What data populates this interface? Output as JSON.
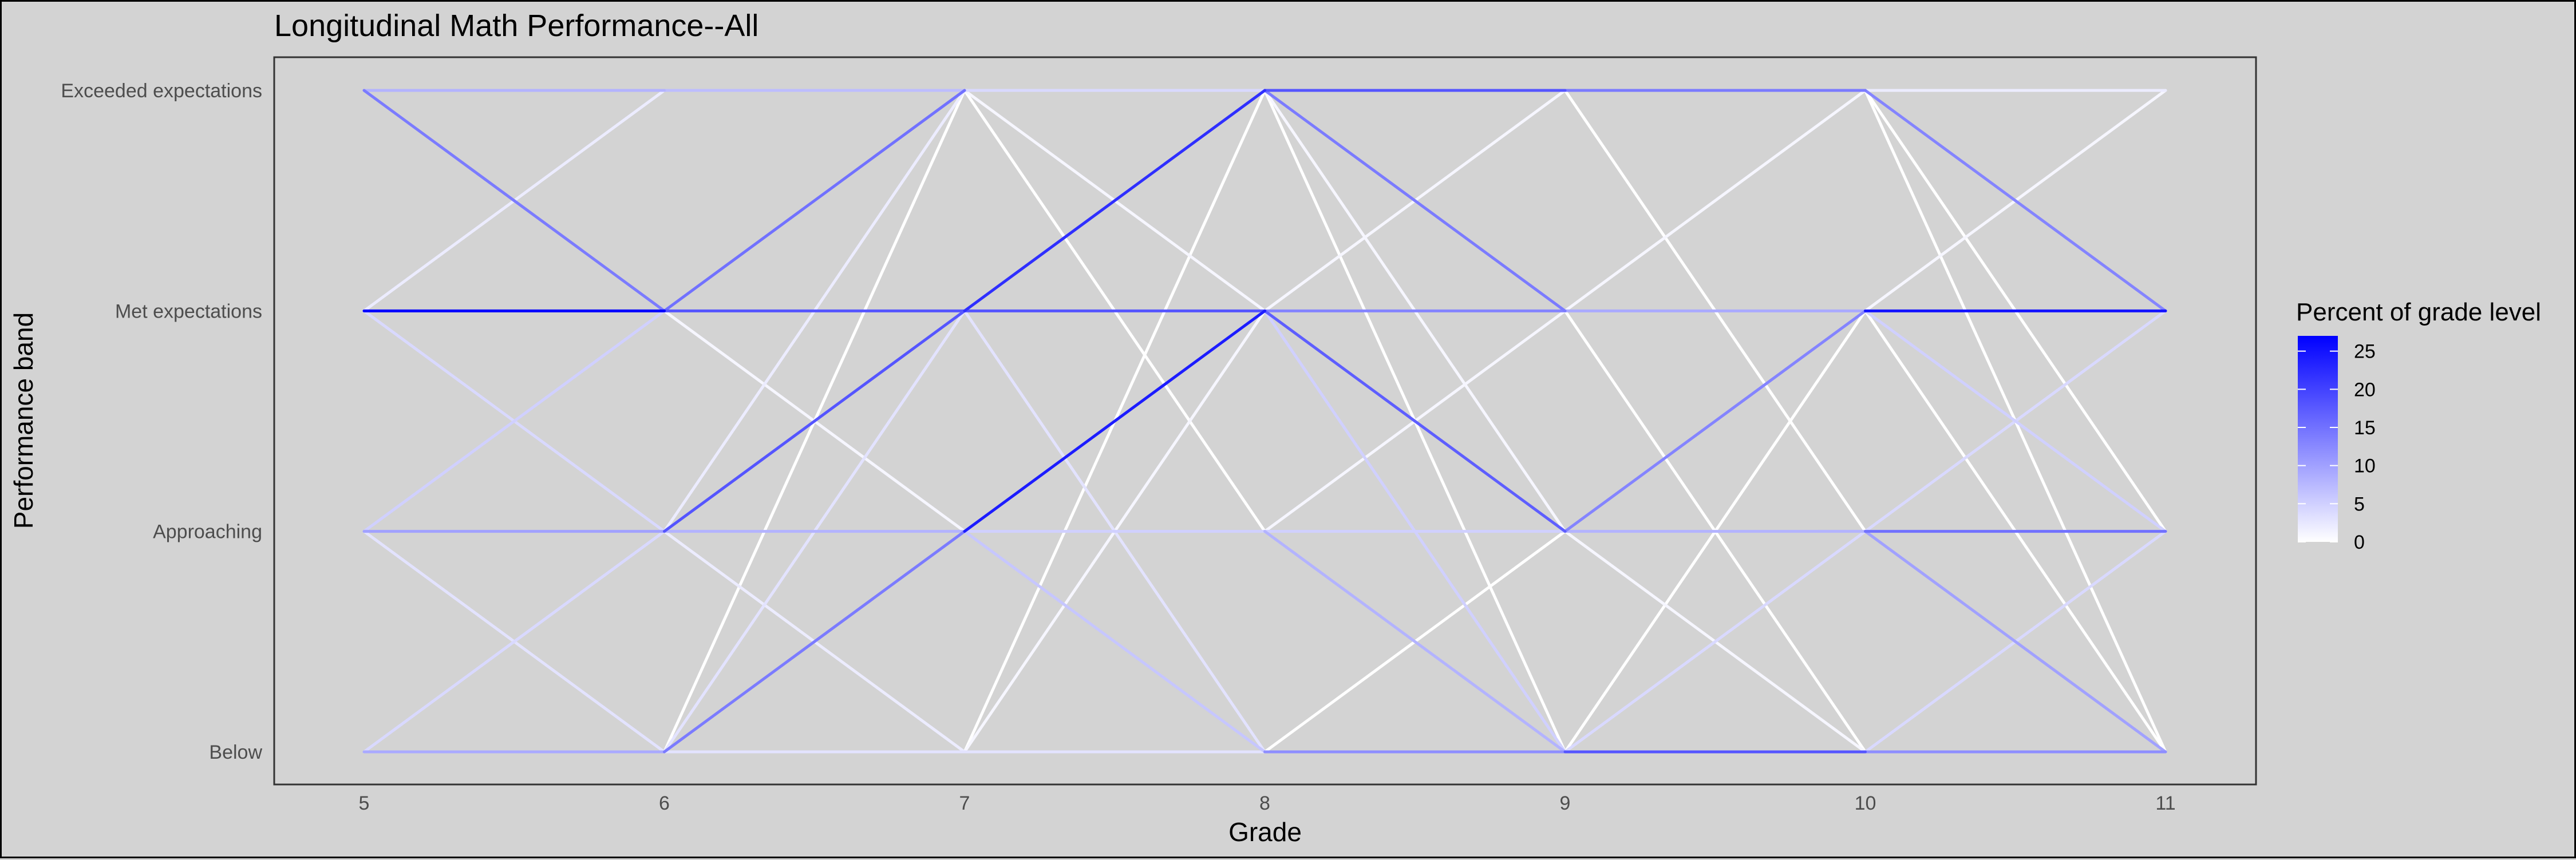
{
  "chart_data": {
    "type": "line",
    "title": "Longitudinal Math Performance--All",
    "xlabel": "Grade",
    "ylabel": "Performance band",
    "x": [
      5,
      6,
      7,
      8,
      9,
      10,
      11
    ],
    "categories": [
      "Below",
      "Approaching",
      "Met expectations",
      "Exceeded expectations"
    ],
    "xlim": [
      4.7,
      11.3
    ],
    "grid": false,
    "legend": {
      "title": "Percent of grade level",
      "placement": "right",
      "ticks": [
        0,
        5,
        10,
        15,
        20,
        25
      ],
      "min": 0,
      "max": 27,
      "color_low": "#ffffff",
      "color_high": "#0000ff"
    },
    "panel_background": "#d3d3d3",
    "transitions": [
      {
        "from_grade": 5,
        "from": "Exceeded expectations",
        "to": "Exceeded expectations",
        "percent": 8
      },
      {
        "from_grade": 5,
        "from": "Exceeded expectations",
        "to": "Met expectations",
        "percent": 14
      },
      {
        "from_grade": 5,
        "from": "Met expectations",
        "to": "Exceeded expectations",
        "percent": 2
      },
      {
        "from_grade": 5,
        "from": "Met expectations",
        "to": "Met expectations",
        "percent": 27
      },
      {
        "from_grade": 5,
        "from": "Met expectations",
        "to": "Approaching",
        "percent": 4
      },
      {
        "from_grade": 5,
        "from": "Approaching",
        "to": "Met expectations",
        "percent": 5
      },
      {
        "from_grade": 5,
        "from": "Approaching",
        "to": "Approaching",
        "percent": 10
      },
      {
        "from_grade": 5,
        "from": "Approaching",
        "to": "Below",
        "percent": 3
      },
      {
        "from_grade": 5,
        "from": "Below",
        "to": "Approaching",
        "percent": 4
      },
      {
        "from_grade": 5,
        "from": "Below",
        "to": "Below",
        "percent": 9
      },
      {
        "from_grade": 6,
        "from": "Exceeded expectations",
        "to": "Exceeded expectations",
        "percent": 7
      },
      {
        "from_grade": 6,
        "from": "Met expectations",
        "to": "Exceeded expectations",
        "percent": 15
      },
      {
        "from_grade": 6,
        "from": "Met expectations",
        "to": "Met expectations",
        "percent": 18
      },
      {
        "from_grade": 6,
        "from": "Met expectations",
        "to": "Approaching",
        "percent": 1
      },
      {
        "from_grade": 6,
        "from": "Approaching",
        "to": "Exceeded expectations",
        "percent": 2
      },
      {
        "from_grade": 6,
        "from": "Approaching",
        "to": "Met expectations",
        "percent": 18
      },
      {
        "from_grade": 6,
        "from": "Approaching",
        "to": "Approaching",
        "percent": 8
      },
      {
        "from_grade": 6,
        "from": "Approaching",
        "to": "Below",
        "percent": 2
      },
      {
        "from_grade": 6,
        "from": "Below",
        "to": "Exceeded expectations",
        "percent": 0
      },
      {
        "from_grade": 6,
        "from": "Below",
        "to": "Met expectations",
        "percent": 3
      },
      {
        "from_grade": 6,
        "from": "Below",
        "to": "Approaching",
        "percent": 14
      },
      {
        "from_grade": 6,
        "from": "Below",
        "to": "Below",
        "percent": 3
      },
      {
        "from_grade": 7,
        "from": "Exceeded expectations",
        "to": "Exceeded expectations",
        "percent": 4
      },
      {
        "from_grade": 7,
        "from": "Exceeded expectations",
        "to": "Met expectations",
        "percent": 1
      },
      {
        "from_grade": 7,
        "from": "Exceeded expectations",
        "to": "Approaching",
        "percent": 0
      },
      {
        "from_grade": 7,
        "from": "Met expectations",
        "to": "Exceeded expectations",
        "percent": 22
      },
      {
        "from_grade": 7,
        "from": "Met expectations",
        "to": "Met expectations",
        "percent": 18
      },
      {
        "from_grade": 7,
        "from": "Met expectations",
        "to": "Below",
        "percent": 3
      },
      {
        "from_grade": 7,
        "from": "Approaching",
        "to": "Met expectations",
        "percent": 24
      },
      {
        "from_grade": 7,
        "from": "Approaching",
        "to": "Approaching",
        "percent": 5
      },
      {
        "from_grade": 7,
        "from": "Approaching",
        "to": "Below",
        "percent": 6
      },
      {
        "from_grade": 7,
        "from": "Below",
        "to": "Exceeded expectations",
        "percent": 0
      },
      {
        "from_grade": 7,
        "from": "Below",
        "to": "Met expectations",
        "percent": 1
      },
      {
        "from_grade": 7,
        "from": "Below",
        "to": "Below",
        "percent": 3
      },
      {
        "from_grade": 8,
        "from": "Exceeded expectations",
        "to": "Exceeded expectations",
        "percent": 18
      },
      {
        "from_grade": 8,
        "from": "Exceeded expectations",
        "to": "Met expectations",
        "percent": 14
      },
      {
        "from_grade": 8,
        "from": "Exceeded expectations",
        "to": "Approaching",
        "percent": 1
      },
      {
        "from_grade": 8,
        "from": "Exceeded expectations",
        "to": "Below",
        "percent": 0
      },
      {
        "from_grade": 8,
        "from": "Met expectations",
        "to": "Exceeded expectations",
        "percent": 1
      },
      {
        "from_grade": 8,
        "from": "Met expectations",
        "to": "Met expectations",
        "percent": 13
      },
      {
        "from_grade": 8,
        "from": "Met expectations",
        "to": "Approaching",
        "percent": 17
      },
      {
        "from_grade": 8,
        "from": "Met expectations",
        "to": "Below",
        "percent": 5
      },
      {
        "from_grade": 8,
        "from": "Approaching",
        "to": "Met expectations",
        "percent": 1
      },
      {
        "from_grade": 8,
        "from": "Approaching",
        "to": "Approaching",
        "percent": 5
      },
      {
        "from_grade": 8,
        "from": "Approaching",
        "to": "Below",
        "percent": 8
      },
      {
        "from_grade": 8,
        "from": "Below",
        "to": "Approaching",
        "percent": 0
      },
      {
        "from_grade": 8,
        "from": "Below",
        "to": "Below",
        "percent": 12
      },
      {
        "from_grade": 9,
        "from": "Exceeded expectations",
        "to": "Exceeded expectations",
        "percent": 14
      },
      {
        "from_grade": 9,
        "from": "Exceeded expectations",
        "to": "Approaching",
        "percent": 0
      },
      {
        "from_grade": 9,
        "from": "Met expectations",
        "to": "Exceeded expectations",
        "percent": 1
      },
      {
        "from_grade": 9,
        "from": "Met expectations",
        "to": "Met expectations",
        "percent": 9
      },
      {
        "from_grade": 9,
        "from": "Met expectations",
        "to": "Below",
        "percent": 0
      },
      {
        "from_grade": 9,
        "from": "Approaching",
        "to": "Met expectations",
        "percent": 13
      },
      {
        "from_grade": 9,
        "from": "Approaching",
        "to": "Approaching",
        "percent": 8
      },
      {
        "from_grade": 9,
        "from": "Approaching",
        "to": "Below",
        "percent": 1
      },
      {
        "from_grade": 9,
        "from": "Below",
        "to": "Met expectations",
        "percent": 0
      },
      {
        "from_grade": 9,
        "from": "Below",
        "to": "Approaching",
        "percent": 4
      },
      {
        "from_grade": 9,
        "from": "Below",
        "to": "Below",
        "percent": 18
      },
      {
        "from_grade": 10,
        "from": "Exceeded expectations",
        "to": "Exceeded expectations",
        "percent": 2
      },
      {
        "from_grade": 10,
        "from": "Exceeded expectations",
        "to": "Met expectations",
        "percent": 13
      },
      {
        "from_grade": 10,
        "from": "Exceeded expectations",
        "to": "Approaching",
        "percent": 0
      },
      {
        "from_grade": 10,
        "from": "Exceeded expectations",
        "to": "Below",
        "percent": 0
      },
      {
        "from_grade": 10,
        "from": "Met expectations",
        "to": "Exceeded expectations",
        "percent": 1
      },
      {
        "from_grade": 10,
        "from": "Met expectations",
        "to": "Met expectations",
        "percent": 25
      },
      {
        "from_grade": 10,
        "from": "Met expectations",
        "to": "Approaching",
        "percent": 5
      },
      {
        "from_grade": 10,
        "from": "Met expectations",
        "to": "Below",
        "percent": 0
      },
      {
        "from_grade": 10,
        "from": "Approaching",
        "to": "Met expectations",
        "percent": 4
      },
      {
        "from_grade": 10,
        "from": "Approaching",
        "to": "Approaching",
        "percent": 15
      },
      {
        "from_grade": 10,
        "from": "Approaching",
        "to": "Below",
        "percent": 10
      },
      {
        "from_grade": 10,
        "from": "Below",
        "to": "Approaching",
        "percent": 4
      },
      {
        "from_grade": 10,
        "from": "Below",
        "to": "Below",
        "percent": 12
      }
    ]
  }
}
